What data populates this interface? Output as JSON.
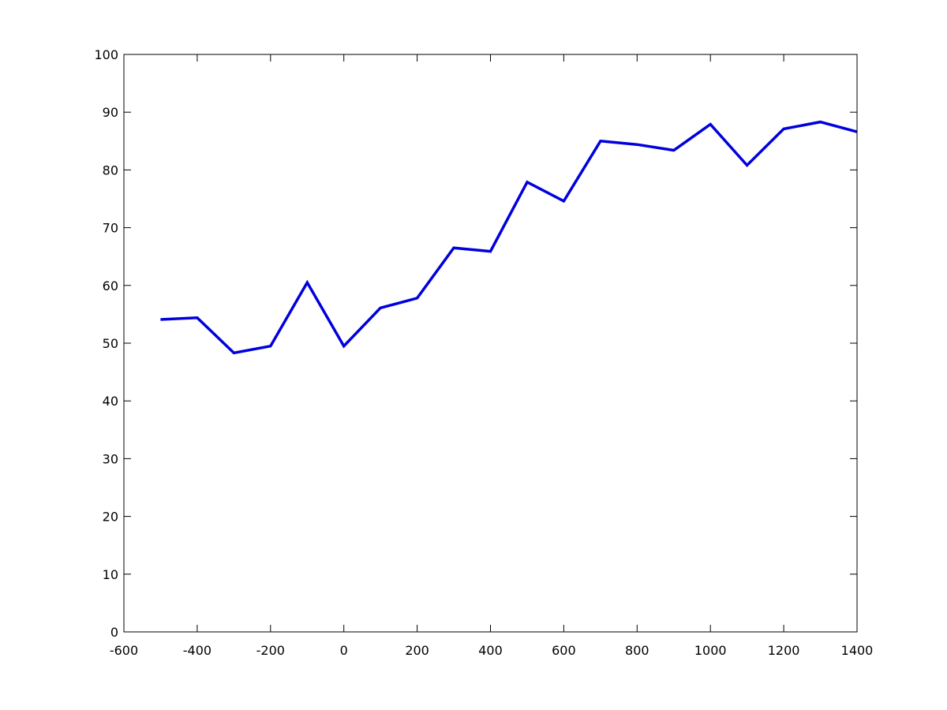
{
  "chart_data": {
    "type": "line",
    "title": "",
    "xlabel": "",
    "ylabel": "",
    "xlim": [
      -600,
      1400
    ],
    "ylim": [
      0,
      100
    ],
    "x_ticks": [
      -600,
      -400,
      -200,
      0,
      200,
      400,
      600,
      800,
      1000,
      1200,
      1400
    ],
    "y_ticks": [
      0,
      10,
      20,
      30,
      40,
      50,
      60,
      70,
      80,
      90,
      100
    ],
    "grid": false,
    "series": [
      {
        "color": "#0000dd",
        "x": [
          -500,
          -400,
          -300,
          -200,
          -100,
          0,
          100,
          200,
          300,
          400,
          500,
          600,
          700,
          800,
          900,
          1000,
          1100,
          1200,
          1300,
          1400
        ],
        "y": [
          54.1,
          54.4,
          48.3,
          49.5,
          60.5,
          49.5,
          56.1,
          57.8,
          66.5,
          65.9,
          77.9,
          74.6,
          85.0,
          84.4,
          83.4,
          87.9,
          80.8,
          87.1,
          88.3,
          86.6
        ]
      }
    ]
  }
}
